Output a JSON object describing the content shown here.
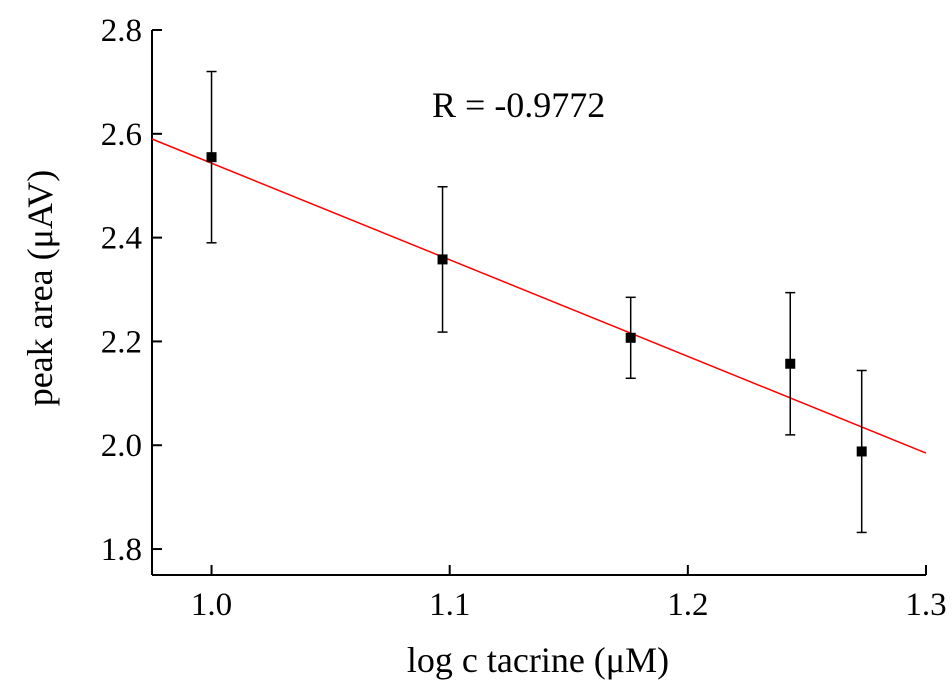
{
  "chart_data": {
    "type": "scatter",
    "title": "",
    "xlabel": "log c tacrine (μM)",
    "ylabel": "peak area (μAV)",
    "xlim": [
      0.975,
      1.3
    ],
    "ylim": [
      1.75,
      2.8
    ],
    "xticks": [
      1.0,
      1.1,
      1.2,
      1.3
    ],
    "xtick_labels": [
      "1.0",
      "1.1",
      "1.2",
      "1.3"
    ],
    "yticks": [
      1.8,
      2.0,
      2.2,
      2.4,
      2.6,
      2.8
    ],
    "ytick_labels": [
      "1.8",
      "2.0",
      "2.2",
      "2.4",
      "2.6",
      "2.8"
    ],
    "grid": false,
    "points": [
      {
        "x": 1.0,
        "y": 2.555,
        "err": 0.165
      },
      {
        "x": 1.097,
        "y": 2.358,
        "err": 0.14
      },
      {
        "x": 1.176,
        "y": 2.207,
        "err": 0.078
      },
      {
        "x": 1.243,
        "y": 2.157,
        "err": 0.137
      },
      {
        "x": 1.273,
        "y": 1.988,
        "err": 0.156
      }
    ],
    "fit_line": {
      "x": [
        0.975,
        1.3
      ],
      "y": [
        2.59,
        1.985
      ]
    },
    "annotation": "R = -0.9772",
    "colors": {
      "points": "#000000",
      "fit": "#ff0000",
      "axes": "#000000"
    }
  }
}
